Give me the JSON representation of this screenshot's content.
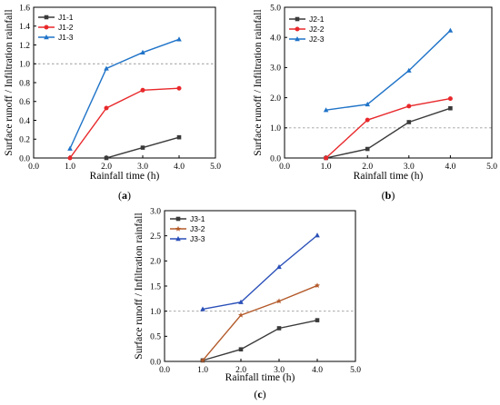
{
  "chart_data": [
    {
      "type": "line",
      "panel_label": "(a)",
      "xlabel": "Rainfall time (h)",
      "ylabel": "Surface runoff / Infiltration  rainfall",
      "xlim": [
        0.0,
        5.0
      ],
      "ylim": [
        0.0,
        1.6
      ],
      "xticks": [
        "0.0",
        "1.0",
        "2.0",
        "3.0",
        "4.0",
        "5.0"
      ],
      "yticks": [
        "0.0",
        "0.2",
        "0.4",
        "0.6",
        "0.8",
        "1.0",
        "1.2",
        "1.4",
        "1.6"
      ],
      "reference_line_y": 1.0,
      "legend_position": "top-left",
      "series": [
        {
          "name": "J1-1",
          "color": "#3a3a3a",
          "marker": "square",
          "x": [
            2,
            3,
            4
          ],
          "values": [
            0.0,
            0.11,
            0.22
          ]
        },
        {
          "name": "J1-2",
          "color": "#e8282b",
          "marker": "circle",
          "x": [
            1,
            2,
            3,
            4
          ],
          "values": [
            0.0,
            0.53,
            0.72,
            0.74
          ]
        },
        {
          "name": "J1-3",
          "color": "#1f73c8",
          "marker": "triangle",
          "x": [
            1,
            2,
            3,
            4
          ],
          "values": [
            0.1,
            0.95,
            1.12,
            1.26
          ]
        }
      ]
    },
    {
      "type": "line",
      "panel_label": "(b)",
      "xlabel": "Rainfall time (h)",
      "ylabel": "Surface runoff / Infiltration  rainfall",
      "xlim": [
        0.0,
        5.0
      ],
      "ylim": [
        0.0,
        5.0
      ],
      "xticks": [
        "0.0",
        "1.0",
        "2.0",
        "3.0",
        "4.0",
        "5.0"
      ],
      "yticks": [
        "0.0",
        "1.0",
        "2.0",
        "3.0",
        "4.0",
        "5.0"
      ],
      "reference_line_y": 1.0,
      "legend_position": "top-left",
      "series": [
        {
          "name": "J2-1",
          "color": "#3a3a3a",
          "marker": "square",
          "x": [
            1,
            2,
            3,
            4
          ],
          "values": [
            0.0,
            0.3,
            1.19,
            1.65
          ]
        },
        {
          "name": "J2-2",
          "color": "#e8282b",
          "marker": "circle",
          "x": [
            1,
            2,
            3,
            4
          ],
          "values": [
            0.0,
            1.26,
            1.72,
            1.97
          ]
        },
        {
          "name": "J2-3",
          "color": "#1f73c8",
          "marker": "triangle",
          "x": [
            1,
            2,
            3,
            4
          ],
          "values": [
            1.59,
            1.78,
            2.9,
            4.23
          ]
        }
      ]
    },
    {
      "type": "line",
      "panel_label": "(c)",
      "xlabel": "Rainfall time (h)",
      "ylabel": "Surface runoff / Infiltration  rainfall",
      "xlim": [
        0.0,
        5.0
      ],
      "ylim": [
        0.0,
        3.0
      ],
      "xticks": [
        "0.0",
        "1.0",
        "2.0",
        "3.0",
        "4.0",
        "5.0"
      ],
      "yticks": [
        "0.0",
        "0.5",
        "1.0",
        "1.5",
        "2.0",
        "2.5",
        "3.0"
      ],
      "reference_line_y": 1.0,
      "legend_position": "top-left",
      "series": [
        {
          "name": "J3-1",
          "color": "#3a3a3a",
          "marker": "square",
          "x": [
            1,
            2,
            3,
            4
          ],
          "values": [
            0.02,
            0.24,
            0.66,
            0.82
          ]
        },
        {
          "name": "J3-2",
          "color": "#b35a2a",
          "marker": "star",
          "x": [
            1,
            2,
            3,
            4
          ],
          "values": [
            0.02,
            0.92,
            1.2,
            1.51
          ]
        },
        {
          "name": "J3-3",
          "color": "#2a4fb8",
          "marker": "triangle",
          "x": [
            1,
            2,
            3,
            4
          ],
          "values": [
            1.04,
            1.18,
            1.88,
            2.51
          ]
        }
      ]
    }
  ]
}
